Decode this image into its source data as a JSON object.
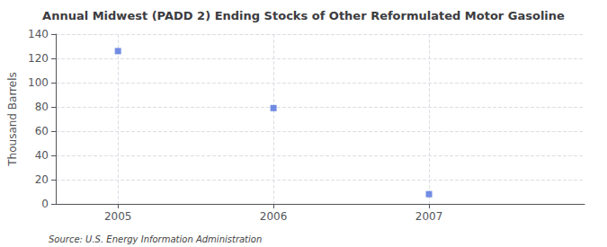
{
  "chart_data": {
    "type": "scatter",
    "title": "Annual Midwest (PADD 2) Ending Stocks of Other Reformulated Motor Gasoline",
    "ylabel": "Thousand Barrels",
    "annotations": [
      "Source: U.S. Energy Information Administration"
    ],
    "x": [
      2005,
      2006,
      2007
    ],
    "values": [
      126,
      79,
      8
    ],
    "xlim": [
      2004.6,
      2008.0
    ],
    "xticks": [
      2005,
      2006,
      2007
    ],
    "ylim": [
      0,
      140
    ],
    "yticks": [
      0,
      20,
      40,
      60,
      80,
      100,
      120,
      140
    ],
    "grid": true,
    "marker": "square"
  }
}
